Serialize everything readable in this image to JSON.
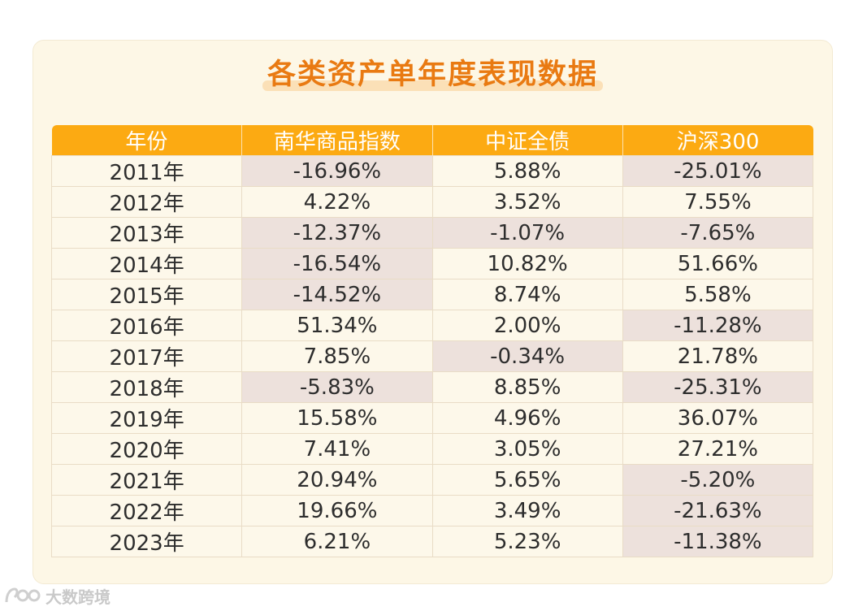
{
  "title": "各类资产单年度表现数据",
  "headers": [
    "年份",
    "南华商品指数",
    "中证全债",
    "沪深300"
  ],
  "rows": [
    [
      "2011年",
      "-16.96%",
      "5.88%",
      "-25.01%"
    ],
    [
      "2012年",
      "4.22%",
      "3.52%",
      "7.55%"
    ],
    [
      "2013年",
      "-12.37%",
      "-1.07%",
      "-7.65%"
    ],
    [
      "2014年",
      "-16.54%",
      "10.82%",
      "51.66%"
    ],
    [
      "2015年",
      "-14.52%",
      "8.74%",
      "5.58%"
    ],
    [
      "2016年",
      "51.34%",
      "2.00%",
      "-11.28%"
    ],
    [
      "2017年",
      "7.85%",
      "-0.34%",
      "21.78%"
    ],
    [
      "2018年",
      "-5.83%",
      "8.85%",
      "-25.31%"
    ],
    [
      "2019年",
      "15.58%",
      "4.96%",
      "36.07%"
    ],
    [
      "2020年",
      "7.41%",
      "3.05%",
      "27.21%"
    ],
    [
      "2021年",
      "20.94%",
      "5.65%",
      "-5.20%"
    ],
    [
      "2022年",
      "19.66%",
      "3.49%",
      "-21.63%"
    ],
    [
      "2023年",
      "6.21%",
      "5.23%",
      "-11.38%"
    ]
  ],
  "colors": {
    "title": "#e97a12",
    "header_bg": "#fcaa12",
    "header_text": "#ffffff",
    "negative_cell_bg": "#ede1dc",
    "cell_bg": "#fdf8ea"
  },
  "watermark": {
    "text": "大数跨境",
    "icon": "watermark-logo-icon"
  }
}
